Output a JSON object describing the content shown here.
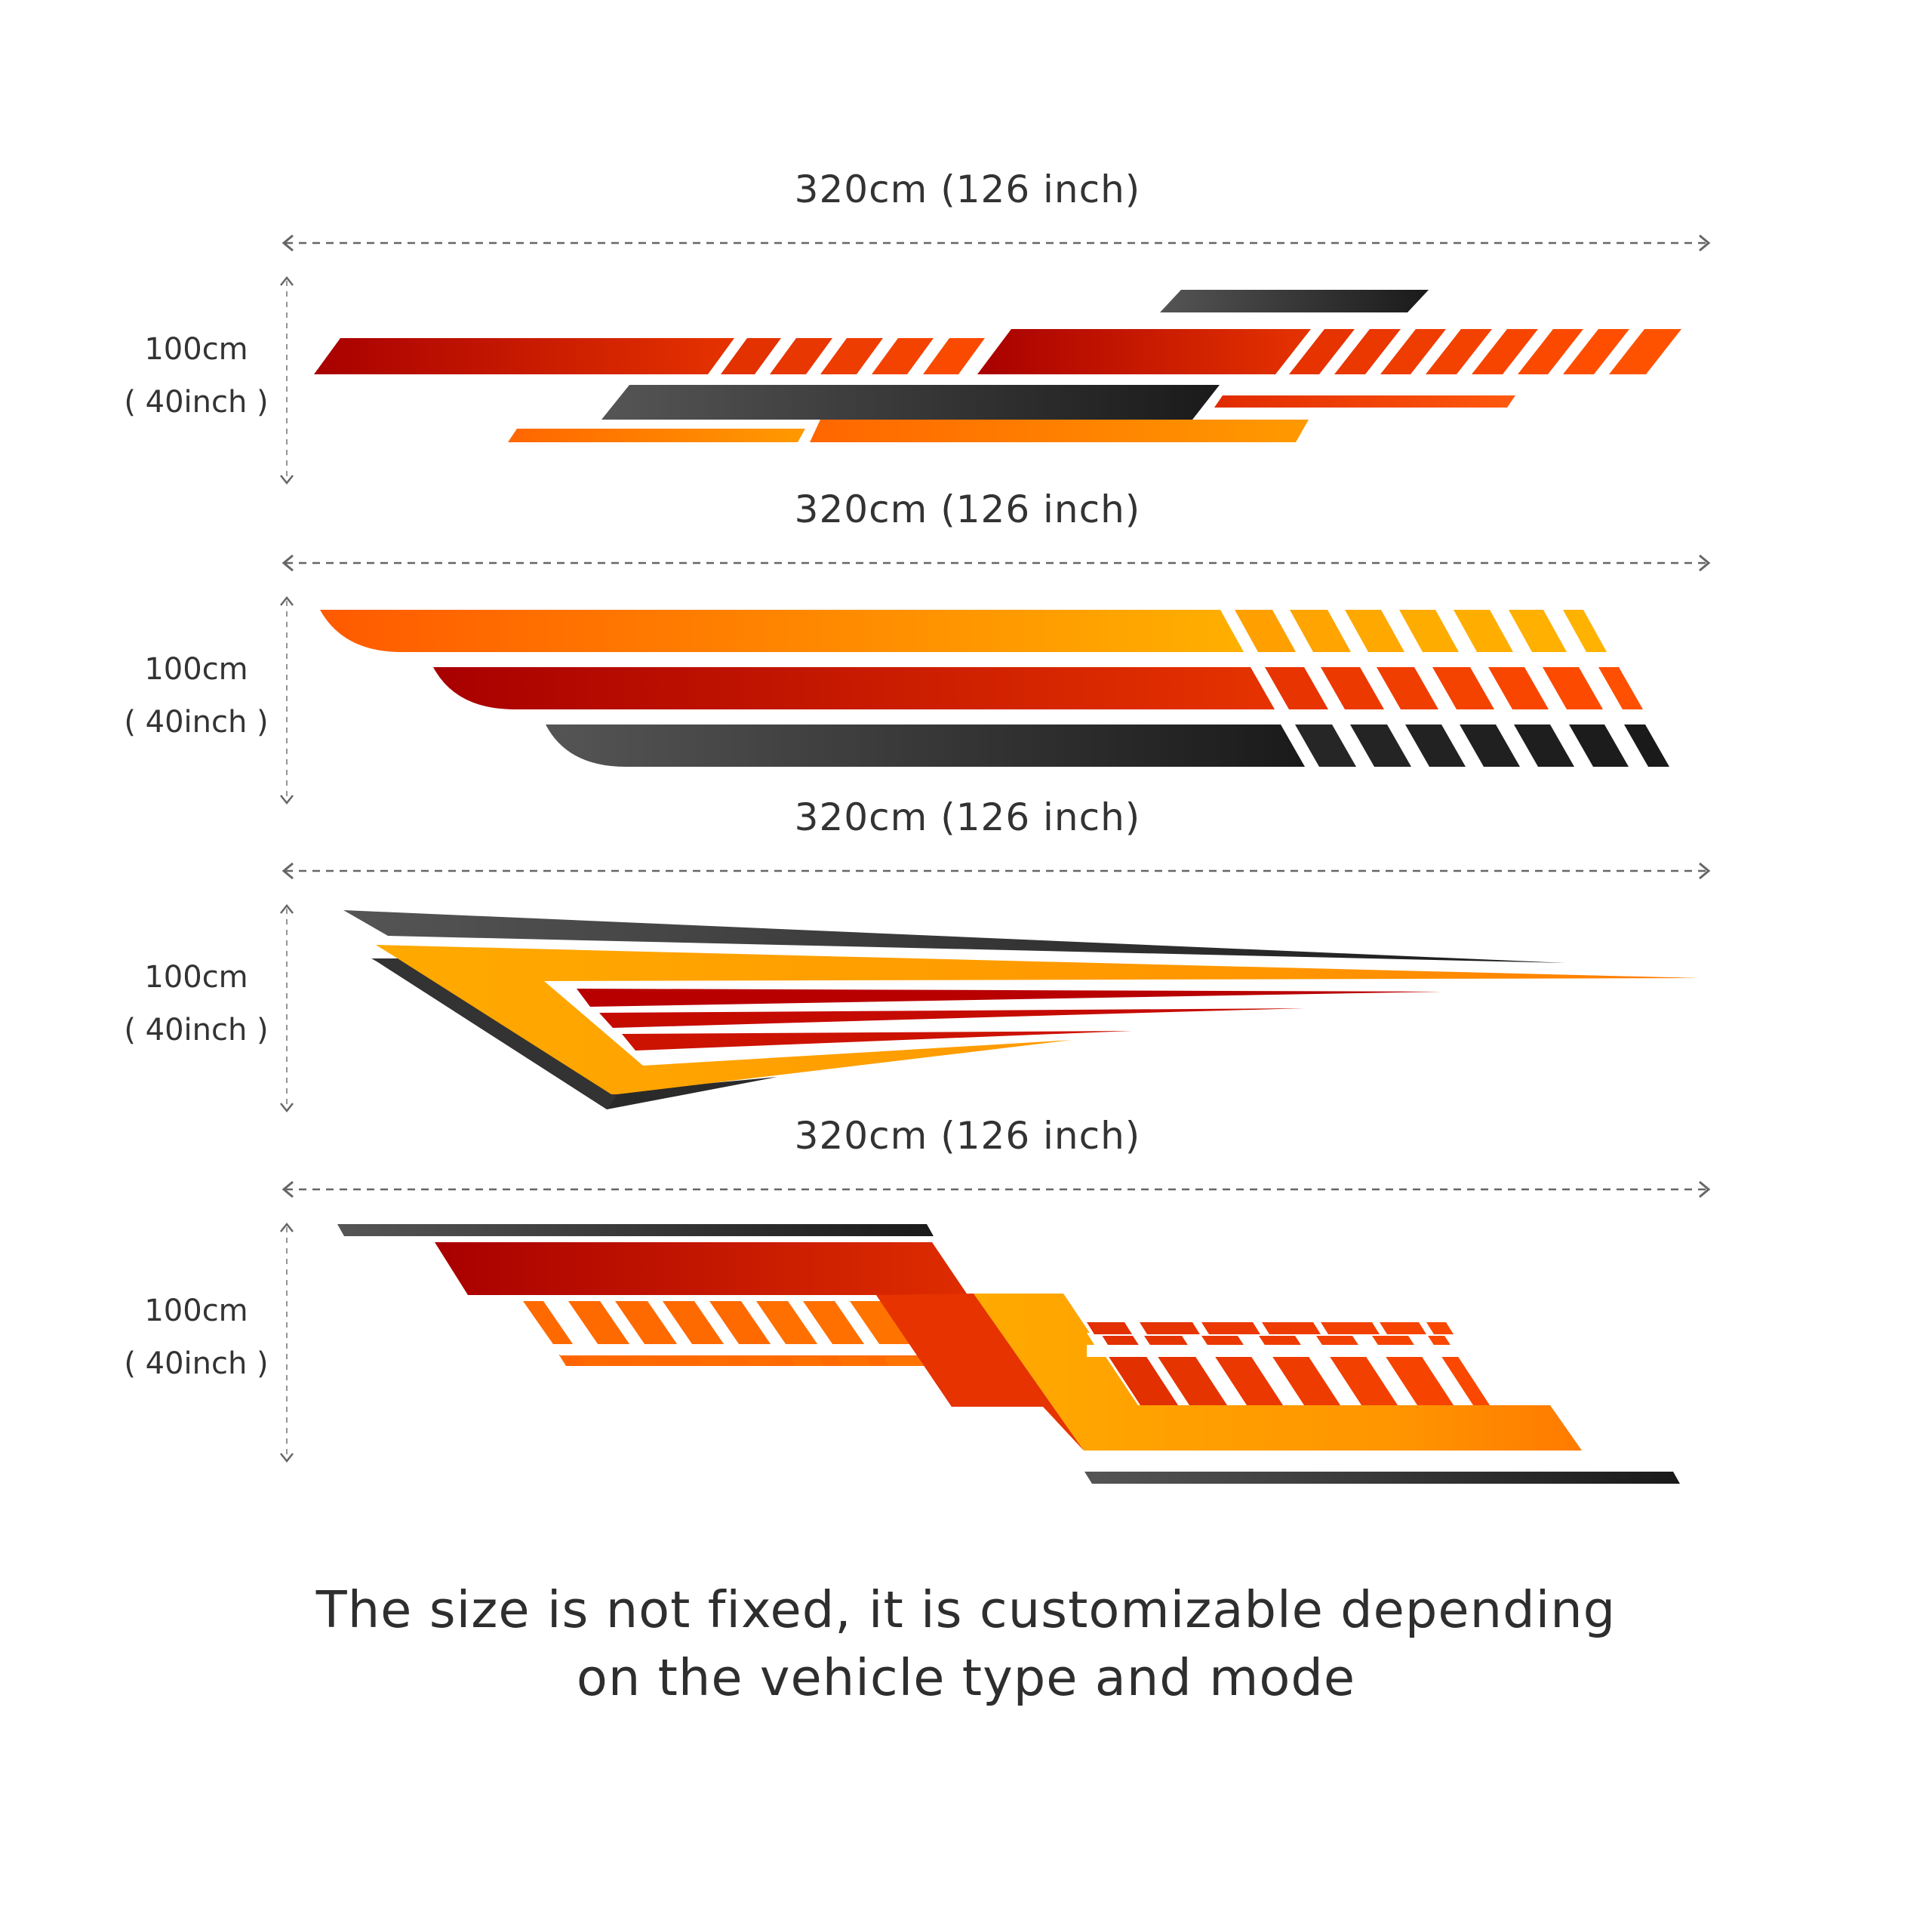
{
  "panels": [
    {
      "width_label": "320cm (126 inch)",
      "height_label": "100cm",
      "height_label_inch": "( 40inch )"
    },
    {
      "width_label": "320cm (126 inch)",
      "height_label": "100cm",
      "height_label_inch": "( 40inch )"
    },
    {
      "width_label": "320cm (126 inch)",
      "height_label": "100cm",
      "height_label_inch": "( 40inch )"
    },
    {
      "width_label": "320cm (126 inch)",
      "height_label": "100cm",
      "height_label_inch": "( 40inch )"
    }
  ],
  "caption": {
    "line1": "The size is not fixed, it is customizable depending",
    "line2": "on the vehicle type and mode"
  },
  "colors": {
    "dark_red": "#a80000",
    "red": "#e02a00",
    "orange_red": "#ff4a10",
    "orange": "#ff7a00",
    "amber": "#ffaa00",
    "dark_grey": "#555555",
    "black": "#1a1a1a",
    "dimension_line": "#666666"
  }
}
